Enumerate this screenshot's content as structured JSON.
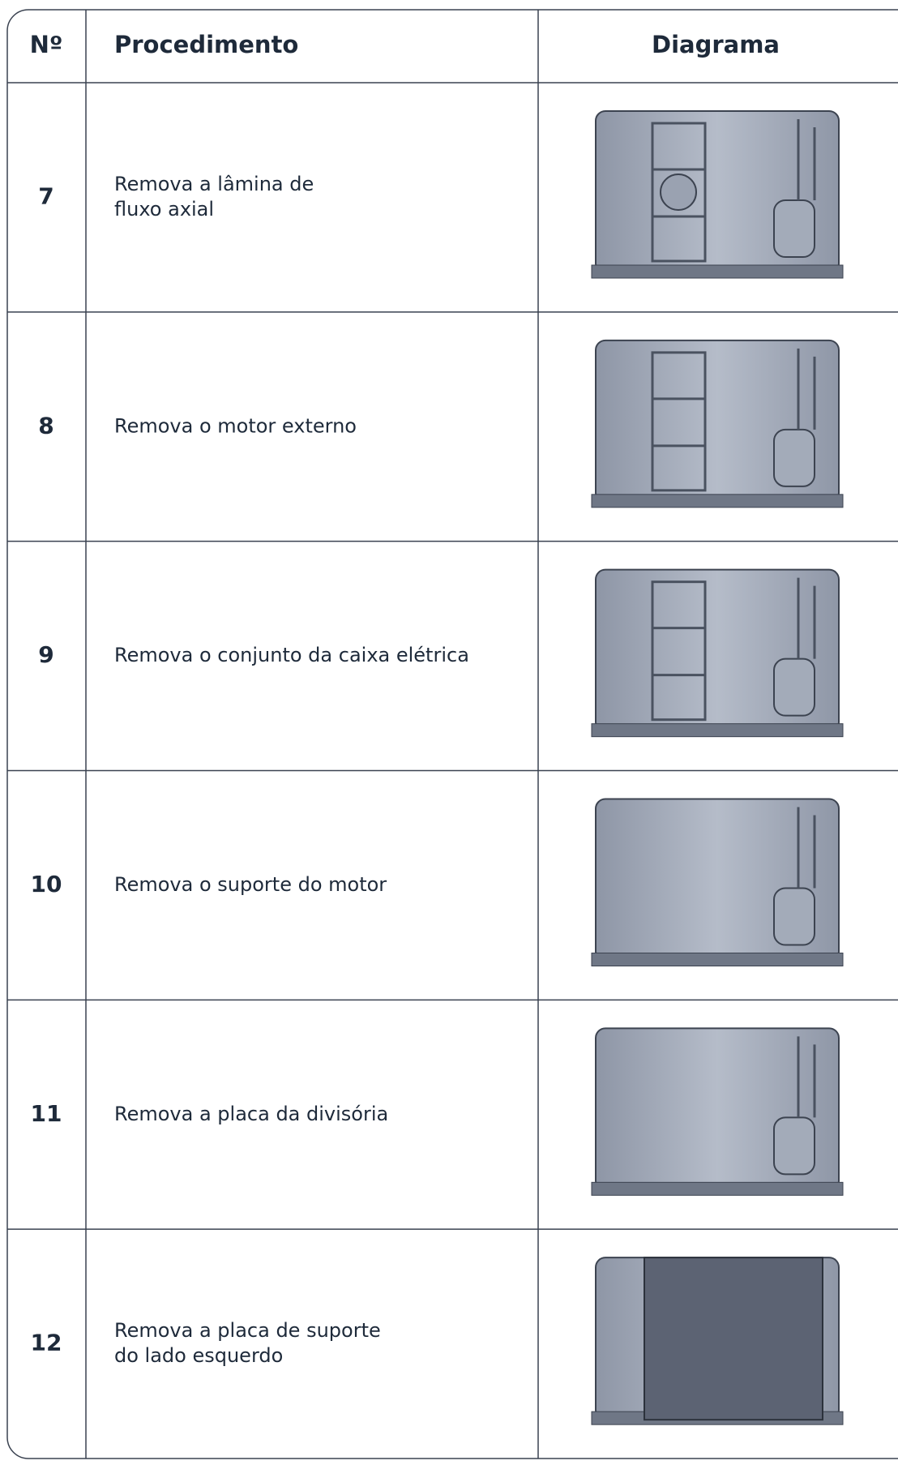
{
  "table": {
    "header": [
      "Nº",
      "Procedimento",
      "Diagrama"
    ],
    "rows": [
      {
        "number": "7",
        "procedure": [
          "Remova a lâmina de",
          "fluxo axial"
        ]
      },
      {
        "number": "8",
        "procedure": [
          "Remova o motor externo"
        ]
      },
      {
        "number": "9",
        "procedure": [
          "Remova o conjunto da caixa elétrica"
        ]
      },
      {
        "number": "10",
        "procedure": [
          "Remova o suporte do motor"
        ]
      },
      {
        "number": "11",
        "procedure": [
          "Remova a placa da divisória"
        ]
      },
      {
        "number": "12",
        "procedure": [
          "Remova a placa de suporte",
          "do lado  esquerdo"
        ]
      }
    ]
  }
}
